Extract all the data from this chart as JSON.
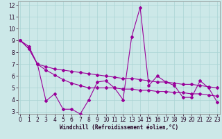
{
  "xlabel": "Windchill (Refroidissement éolien,°C)",
  "x": [
    0,
    1,
    2,
    3,
    4,
    5,
    6,
    7,
    8,
    9,
    10,
    11,
    12,
    13,
    14,
    15,
    16,
    17,
    18,
    19,
    20,
    21,
    22,
    23
  ],
  "series1": [
    9.0,
    8.5,
    7.0,
    3.9,
    4.5,
    3.2,
    3.2,
    2.8,
    4.0,
    5.5,
    5.6,
    5.0,
    4.0,
    9.3,
    11.8,
    5.2,
    6.0,
    5.5,
    5.2,
    4.2,
    4.2,
    5.6,
    5.0,
    3.8
  ],
  "series2": [
    9.0,
    8.3,
    7.0,
    6.8,
    6.6,
    6.5,
    6.4,
    6.3,
    6.2,
    6.1,
    6.0,
    5.9,
    5.8,
    5.8,
    5.7,
    5.6,
    5.5,
    5.5,
    5.4,
    5.3,
    5.3,
    5.2,
    5.1,
    5.0
  ],
  "series3": [
    9.0,
    8.3,
    7.0,
    6.5,
    6.1,
    5.7,
    5.4,
    5.2,
    5.0,
    5.0,
    5.0,
    5.0,
    4.9,
    4.9,
    4.8,
    4.8,
    4.7,
    4.7,
    4.6,
    4.6,
    4.5,
    4.5,
    4.4,
    4.3
  ],
  "ylim_min": 3,
  "ylim_max": 12,
  "xlim_min": 0,
  "xlim_max": 23,
  "yticks": [
    3,
    4,
    5,
    6,
    7,
    8,
    9,
    10,
    11,
    12
  ],
  "xticks": [
    0,
    1,
    2,
    3,
    4,
    5,
    6,
    7,
    8,
    9,
    10,
    11,
    12,
    13,
    14,
    15,
    16,
    17,
    18,
    19,
    20,
    21,
    22,
    23
  ],
  "line_color": "#990099",
  "bg_color": "#cce8e8",
  "grid_color": "#aad4d4",
  "marker": "D",
  "marker_size": 2.0,
  "linewidth": 0.8,
  "tick_fontsize": 5.5,
  "xlabel_fontsize": 5.5
}
